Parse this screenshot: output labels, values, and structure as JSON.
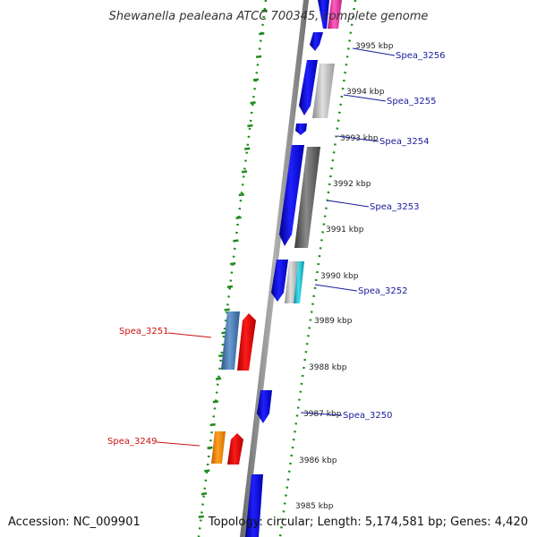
{
  "title": "Shewanella pealeana ATCC 700345, complete genome",
  "accession": "Accession: NC_009901",
  "topology": "Topology: circular; Length: 5,174,581 bp; Genes: 4,420",
  "kbp_ticks": [
    {
      "label": "3995 kbp"
    },
    {
      "label": "3994 kbp"
    },
    {
      "label": "3993 kbp"
    },
    {
      "label": "3992 kbp"
    },
    {
      "label": "3991 kbp"
    },
    {
      "label": "3990 kbp"
    },
    {
      "label": "3989 kbp"
    },
    {
      "label": "3988 kbp"
    },
    {
      "label": "3987 kbp"
    },
    {
      "label": "3986 kbp"
    },
    {
      "label": "3985 kbp"
    }
  ],
  "gene_labels": [
    {
      "name": "Spea_3256",
      "strand": "plus"
    },
    {
      "name": "Spea_3255",
      "strand": "plus"
    },
    {
      "name": "Spea_3254",
      "strand": "plus"
    },
    {
      "name": "Spea_3253",
      "strand": "plus"
    },
    {
      "name": "Spea_3252",
      "strand": "plus"
    },
    {
      "name": "Spea_3251",
      "strand": "minus"
    },
    {
      "name": "Spea_3250",
      "strand": "plus"
    },
    {
      "name": "Spea_3249",
      "strand": "minus"
    }
  ],
  "colors": {
    "backbone": "#888888",
    "dotted_track": "#1f8a1f",
    "plus_strand_gene": "#1a1aee",
    "minus_strand_gene": "#ee1111",
    "steelblue_gene": "#4a7fb5",
    "orange_gene": "#ff8c00",
    "gray_gene": "#b8b8b8",
    "dark_gray_gene": "#6a6a6a",
    "cyan_gene": "#20b8c8",
    "magenta_gene": "#ee44aa"
  }
}
